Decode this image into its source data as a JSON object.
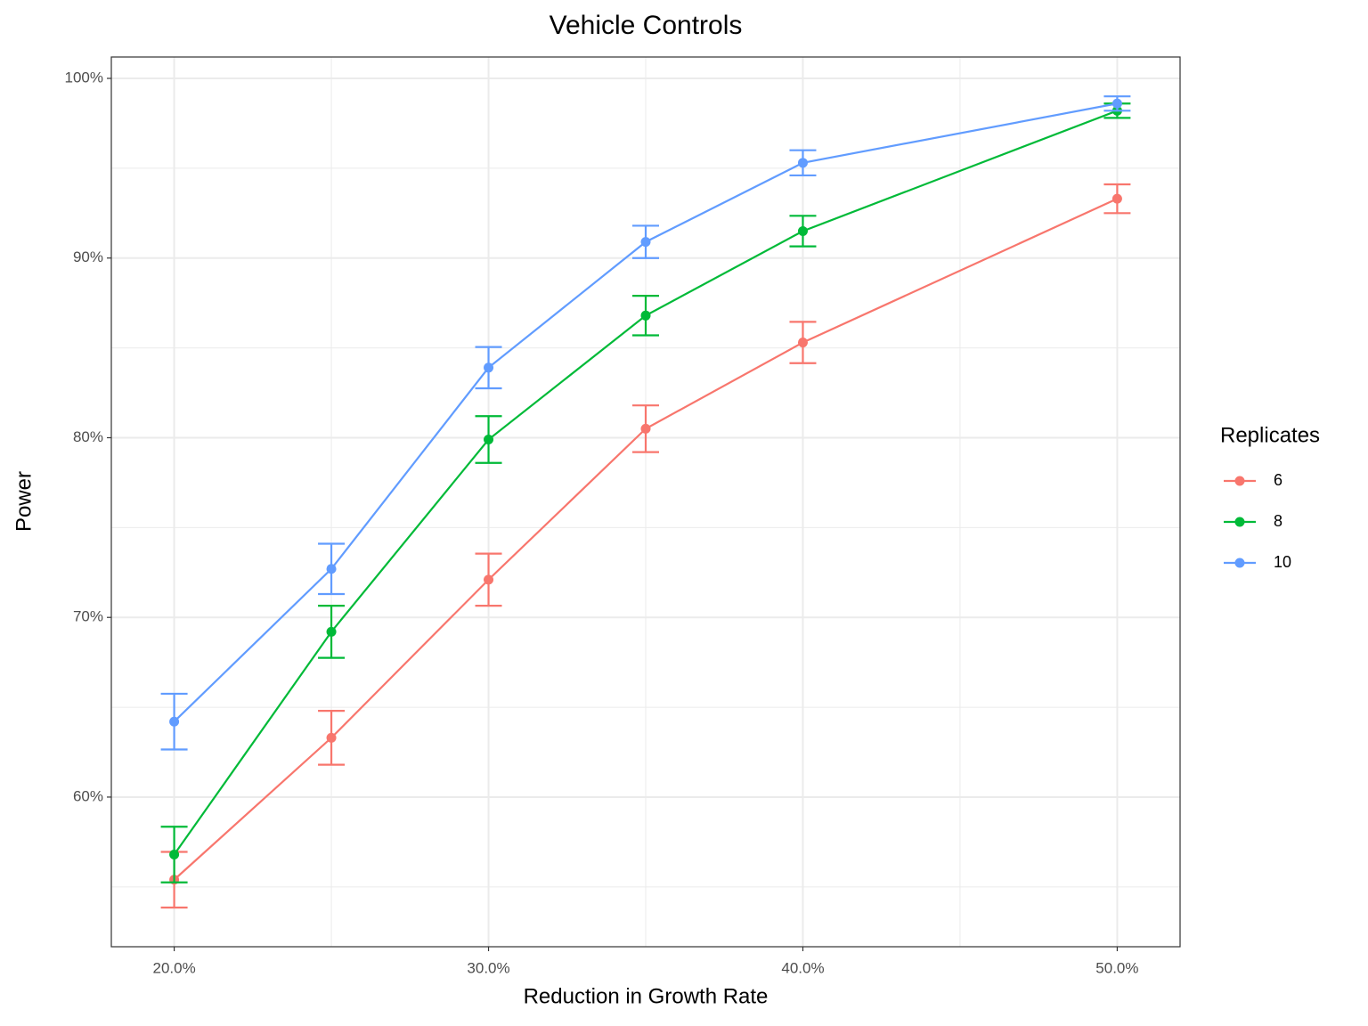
{
  "chart_data": {
    "type": "line",
    "title": "Vehicle Controls",
    "x_label": "Reduction in Growth Rate",
    "y_label": "Power",
    "legend_title": "Replicates",
    "legend_position": "right",
    "grid": true,
    "x": [
      20,
      25,
      30,
      35,
      40,
      50
    ],
    "xlim": [
      18,
      52
    ],
    "xticks": [
      {
        "value": 20,
        "label": "20.0%"
      },
      {
        "value": 30,
        "label": "30.0%"
      },
      {
        "value": 40,
        "label": "40.0%"
      },
      {
        "value": 50,
        "label": "50.0%"
      }
    ],
    "x_minor_grid": [
      25,
      35,
      45
    ],
    "ylim": [
      51.67,
      101.19
    ],
    "yticks": [
      {
        "value": 60,
        "label": "60%"
      },
      {
        "value": 70,
        "label": "70%"
      },
      {
        "value": 80,
        "label": "80%"
      },
      {
        "value": 90,
        "label": "90%"
      },
      {
        "value": 100,
        "label": "100%"
      }
    ],
    "y_minor_grid": [
      55,
      65,
      75,
      85,
      95
    ],
    "series": [
      {
        "name": "6",
        "color": "#F8766D",
        "values": [
          55.4,
          63.3,
          72.1,
          80.5,
          85.3,
          93.3
        ],
        "errors": [
          1.55,
          1.5,
          1.45,
          1.3,
          1.15,
          0.8
        ]
      },
      {
        "name": "8",
        "color": "#00BA38",
        "values": [
          56.8,
          69.2,
          79.9,
          86.8,
          91.5,
          98.2
        ],
        "errors": [
          1.55,
          1.45,
          1.3,
          1.1,
          0.85,
          0.4
        ]
      },
      {
        "name": "10",
        "color": "#619CFF",
        "values": [
          64.2,
          72.7,
          83.9,
          90.9,
          95.3,
          98.6
        ],
        "errors": [
          1.55,
          1.4,
          1.15,
          0.9,
          0.7,
          0.4
        ]
      }
    ]
  }
}
